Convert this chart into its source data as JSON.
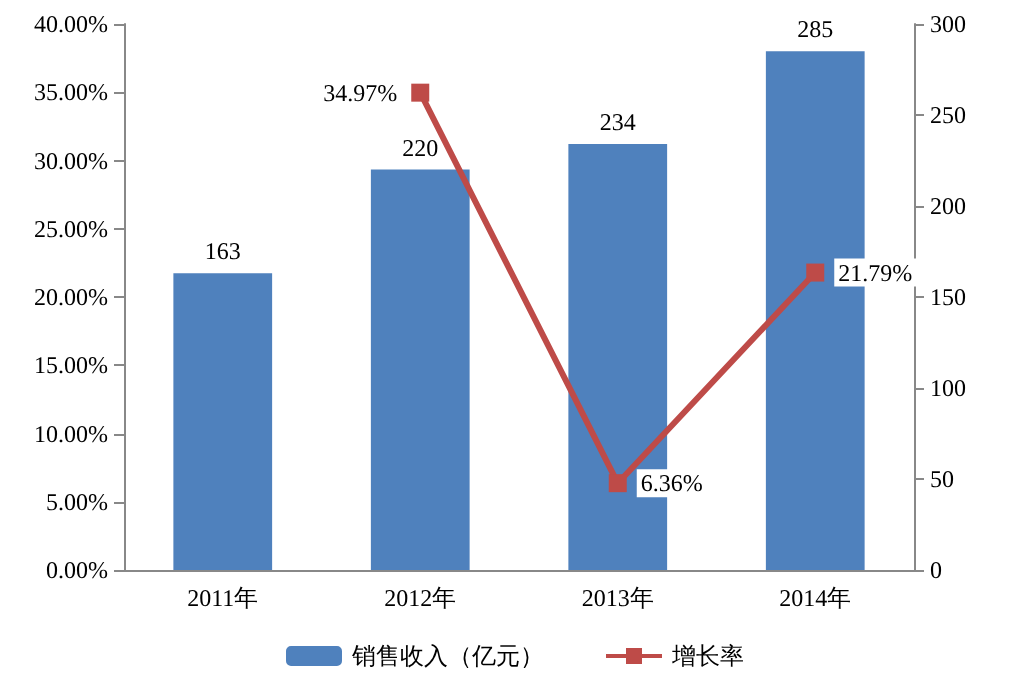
{
  "chart_data": {
    "type": "bar",
    "categories": [
      "2011年",
      "2012年",
      "2013年",
      "2014年"
    ],
    "series": [
      {
        "name": "销售收入（亿元）",
        "axis": "y2",
        "color": "#4f81bd",
        "values": [
          163,
          220,
          234,
          285
        ],
        "value_labels": [
          "163",
          "220",
          "234",
          "285"
        ]
      },
      {
        "name": "增长率",
        "type": "line",
        "axis": "y",
        "color": "#be4b48",
        "values": [
          null,
          34.97,
          6.36,
          21.79
        ],
        "value_labels": [
          null,
          "34.97%",
          "6.36%",
          "21.79%"
        ]
      }
    ],
    "ylim": [
      0,
      40
    ],
    "yticks": [
      {
        "value": 0,
        "label": "0.00%"
      },
      {
        "value": 5,
        "label": "5.00%"
      },
      {
        "value": 10,
        "label": "10.00%"
      },
      {
        "value": 15,
        "label": "15.00%"
      },
      {
        "value": 20,
        "label": "20.00%"
      },
      {
        "value": 25,
        "label": "25.00%"
      },
      {
        "value": 30,
        "label": "30.00%"
      },
      {
        "value": 35,
        "label": "35.00%"
      },
      {
        "value": 40,
        "label": "40.00%"
      }
    ],
    "y2lim": [
      0,
      300
    ],
    "y2ticks": [
      0,
      50,
      100,
      150,
      200,
      250,
      300
    ],
    "legend": "bottom",
    "marker": "square",
    "line_style": "solid"
  }
}
